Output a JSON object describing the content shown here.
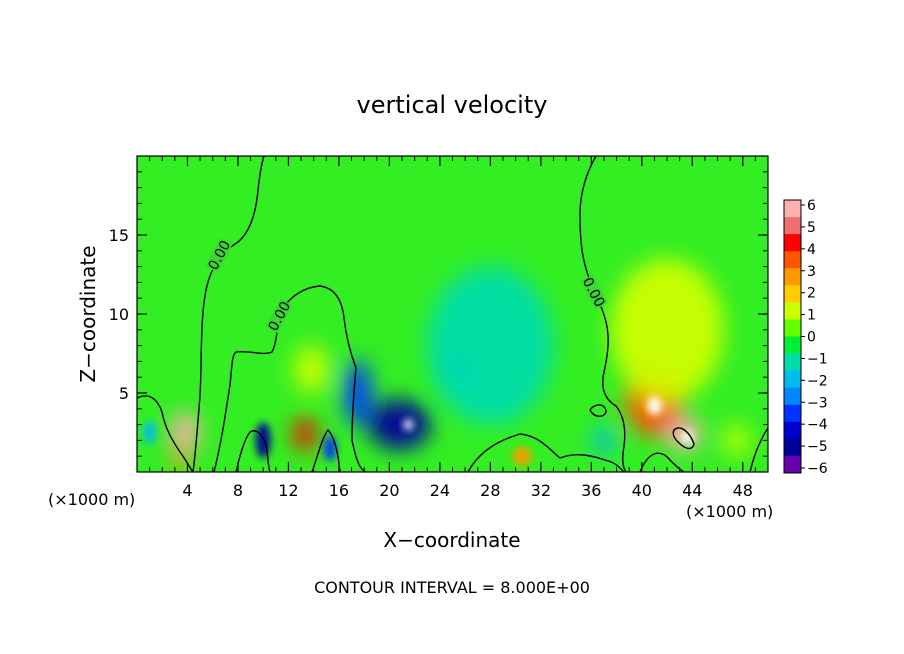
{
  "chart_data": {
    "type": "heatmap",
    "title": "vertical velocity",
    "xlabel": "X−coordinate",
    "ylabel": "Z−coordinate",
    "x_unit_label": "(×1000 m)",
    "z_unit_label": "(×1000 m)",
    "xlim": [
      0,
      50
    ],
    "ylim": [
      0,
      20
    ],
    "x_ticks": [
      4,
      8,
      12,
      16,
      20,
      24,
      28,
      32,
      36,
      40,
      44,
      48
    ],
    "y_ticks": [
      5,
      10,
      15
    ],
    "contour_interval_text": "CONTOUR INTERVAL =  8.000E+00",
    "contour_labels": [
      "0.00",
      "0.00",
      "0.00"
    ],
    "colorbar": {
      "ticks": [
        "6",
        "5",
        "4",
        "3",
        "2",
        "1",
        "0",
        "−1",
        "−2",
        "−3",
        "−4",
        "−5",
        "−6"
      ],
      "colors": [
        "#ffb0b0",
        "#f07070",
        "#ff0000",
        "#ff5500",
        "#ff9900",
        "#ffcc00",
        "#ccff00",
        "#66ff00",
        "#00ee33",
        "#00ddaa",
        "#00bbee",
        "#0088ff",
        "#0033ff",
        "#0000cc",
        "#000099",
        "#6600aa"
      ],
      "range": [
        -6,
        6
      ]
    },
    "features": [
      {
        "x": 3.8,
        "z": 2.6,
        "w": 2.4,
        "h": 2.3,
        "value": 5.5
      },
      {
        "x": 3.5,
        "z": 0.9,
        "w": 1.6,
        "h": 1.5,
        "value": 3.0
      },
      {
        "x": 13.3,
        "z": 2.4,
        "w": 1.8,
        "h": 2.2,
        "value": 4.2
      },
      {
        "x": 13.8,
        "z": 6.5,
        "w": 2.8,
        "h": 3.0,
        "value": 1.0
      },
      {
        "x": 10.0,
        "z": 2.0,
        "w": 1.2,
        "h": 2.3,
        "value": -4.5
      },
      {
        "x": 15.3,
        "z": 1.5,
        "w": 1.0,
        "h": 1.6,
        "value": -3.2
      },
      {
        "x": 17.5,
        "z": 5.0,
        "w": 2.2,
        "h": 4.2,
        "value": -3.3
      },
      {
        "x": 20.8,
        "z": 3.0,
        "w": 5.0,
        "h": 3.2,
        "value": -4.5
      },
      {
        "x": 21.5,
        "z": 3.0,
        "w": 0.8,
        "h": 0.7,
        "value": 6.0
      },
      {
        "x": 25.5,
        "z": 6.5,
        "w": 3.5,
        "h": 2.5,
        "value": -2.6
      },
      {
        "x": 28.0,
        "z": 8.0,
        "w": 10.0,
        "h": 10.0,
        "value": -1.2
      },
      {
        "x": 30.5,
        "z": 1.0,
        "w": 1.5,
        "h": 1.2,
        "value": 2.5
      },
      {
        "x": 41.0,
        "z": 4.6,
        "w": 4.6,
        "h": 4.8,
        "value": 3.6
      },
      {
        "x": 41.0,
        "z": 4.2,
        "w": 1.2,
        "h": 1.2,
        "value": 6.0
      },
      {
        "x": 43.4,
        "z": 2.4,
        "w": 2.8,
        "h": 2.2,
        "value": 5.6
      },
      {
        "x": 43.6,
        "z": 2.2,
        "w": 1.0,
        "h": 0.8,
        "value": 6.0
      },
      {
        "x": 42.0,
        "z": 9.0,
        "w": 9.0,
        "h": 9.0,
        "value": 1.0
      },
      {
        "x": 47.5,
        "z": 2.0,
        "w": 2.0,
        "h": 2.0,
        "value": 1.5
      },
      {
        "x": 1.0,
        "z": 2.5,
        "w": 1.0,
        "h": 1.5,
        "value": -1.8
      },
      {
        "x": 37.0,
        "z": 2.0,
        "w": 2.0,
        "h": 1.5,
        "value": -2.2
      }
    ]
  }
}
